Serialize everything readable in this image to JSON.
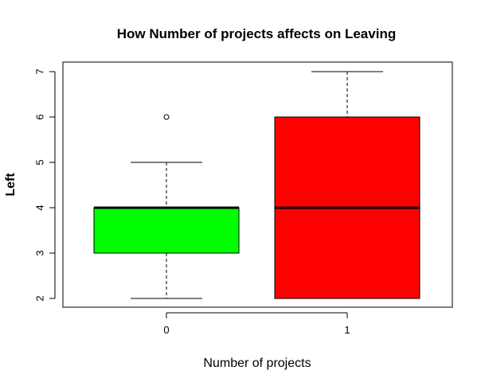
{
  "chart_data": {
    "type": "boxplot",
    "title": "How Number of projects affects on Leaving",
    "xlabel": "Number of projects",
    "ylabel": "Left",
    "categories": [
      "0",
      "1"
    ],
    "ylim": [
      1.8,
      7.2
    ],
    "yticks": [
      "2",
      "3",
      "4",
      "5",
      "6",
      "7"
    ],
    "grid": false,
    "boxes": [
      {
        "category": "0",
        "color": "#00ff00",
        "whisker_low": 2,
        "q1": 3,
        "median": 4,
        "q3": 4,
        "whisker_high": 5,
        "outliers": [
          6
        ]
      },
      {
        "category": "1",
        "color": "#ff0000",
        "whisker_low": 2,
        "q1": 2,
        "median": 4,
        "q3": 6,
        "whisker_high": 7,
        "outliers": []
      }
    ]
  }
}
